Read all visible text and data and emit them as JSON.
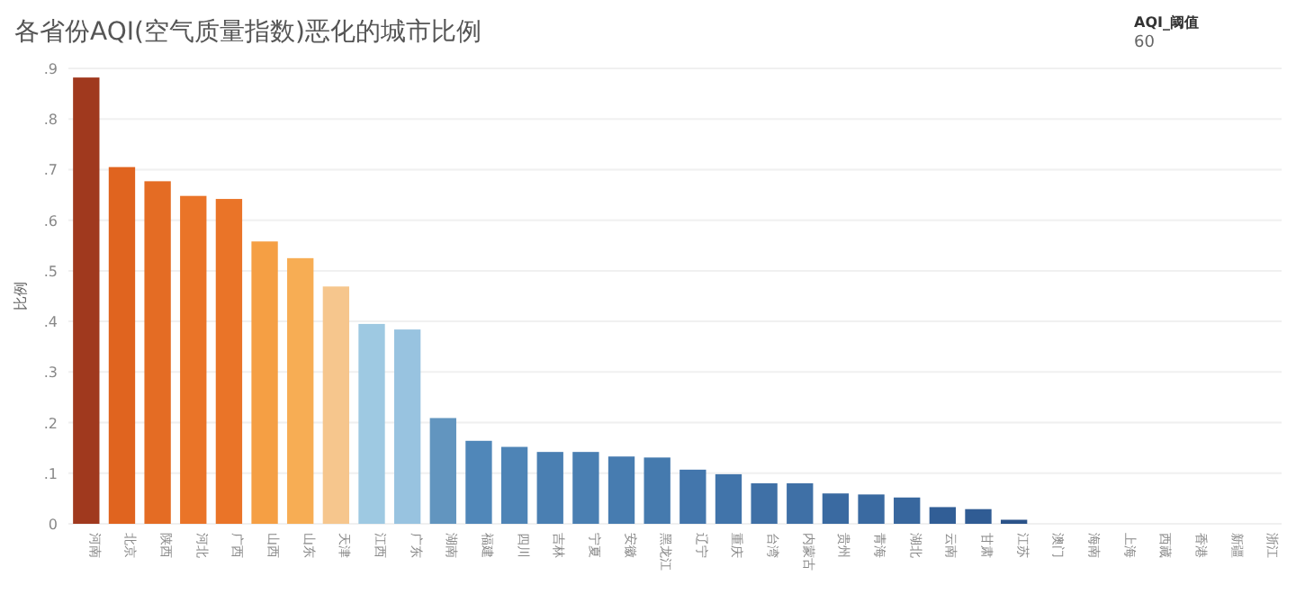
{
  "chart_data": {
    "type": "bar",
    "title": "各省份AQI(空气质量指数)恶化的城市比例",
    "ylabel": "比例",
    "annotations": [
      "AQI_阈值",
      "60"
    ],
    "categories": [
      "河南",
      "北京",
      "陕西",
      "河北",
      "广西",
      "山西",
      "山东",
      "天津",
      "江西",
      "广东",
      "湖南",
      "福建",
      "四川",
      "吉林",
      "宁夏",
      "安徽",
      "黑龙江",
      "辽宁",
      "重庆",
      "台湾",
      "内蒙古",
      "贵州",
      "青海",
      "湖北",
      "云南",
      "甘肃",
      "江苏",
      "澳门",
      "海南",
      "上海",
      "西藏",
      "香港",
      "新疆",
      "浙江"
    ],
    "values": [
      0.882,
      0.705,
      0.677,
      0.648,
      0.642,
      0.558,
      0.525,
      0.469,
      0.395,
      0.384,
      0.209,
      0.164,
      0.152,
      0.142,
      0.142,
      0.133,
      0.131,
      0.107,
      0.098,
      0.08,
      0.08,
      0.06,
      0.058,
      0.052,
      0.033,
      0.029,
      0.008,
      0,
      0,
      0,
      0,
      0,
      0,
      0
    ],
    "colors": [
      "#a0391e",
      "#e0641f",
      "#e46c24",
      "#ea7428",
      "#ea7428",
      "#f59f44",
      "#f7ad54",
      "#f6c68d",
      "#9ec9e2",
      "#98c3e0",
      "#6295bf",
      "#5087b9",
      "#4e84b6",
      "#4a7fb2",
      "#4a7fb2",
      "#477cb0",
      "#457aae",
      "#4376ac",
      "#4174aa",
      "#3f70a6",
      "#3f70a6",
      "#3a6aa1",
      "#3a6aa1",
      "#38679e",
      "#315e96",
      "#305c94",
      "#2b5389",
      "#2b5389",
      "#2b5389",
      "#2b5389",
      "#2b5389",
      "#2b5389",
      "#2b5389",
      "#2b5389"
    ],
    "ylim": [
      0,
      0.9
    ],
    "yticks": [
      0,
      {
        "value": 0.1,
        "label": ".1"
      },
      {
        "value": 0.2,
        "label": ".2"
      },
      {
        "value": 0.3,
        "label": ".3"
      },
      {
        "value": 0.4,
        "label": ".4"
      },
      {
        "value": 0.5,
        "label": ".5"
      },
      {
        "value": 0.6,
        "label": ".6"
      },
      {
        "value": 0.7,
        "label": ".7"
      },
      {
        "value": 0.8,
        "label": ".8"
      },
      {
        "value": 0.9,
        "label": ".9"
      }
    ],
    "grid": "y"
  }
}
